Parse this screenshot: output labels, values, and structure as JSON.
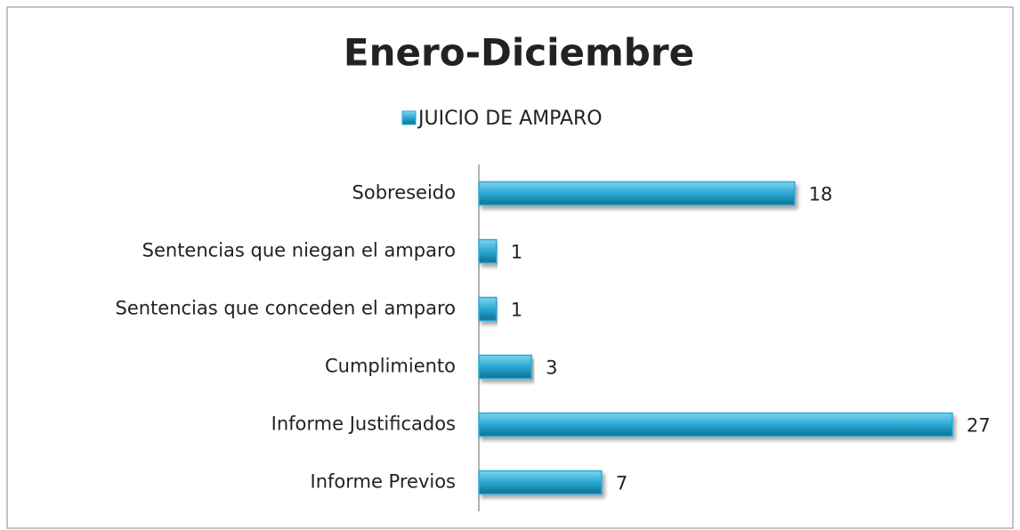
{
  "chart_data": {
    "type": "bar",
    "orientation": "horizontal",
    "title": "Enero-Diciembre",
    "categories": [
      "Sobreseido",
      "Sentencias que niegan el amparo",
      "Sentencias que conceden el amparo",
      "Cumplimiento",
      "Informe Justificados",
      "Informe Previos"
    ],
    "series": [
      {
        "name": "JUICIO DE AMPARO",
        "color": "#29a9d3",
        "values": [
          18,
          1,
          1,
          3,
          27,
          7
        ]
      }
    ],
    "xlim": [
      0,
      27
    ],
    "legend": "top"
  }
}
